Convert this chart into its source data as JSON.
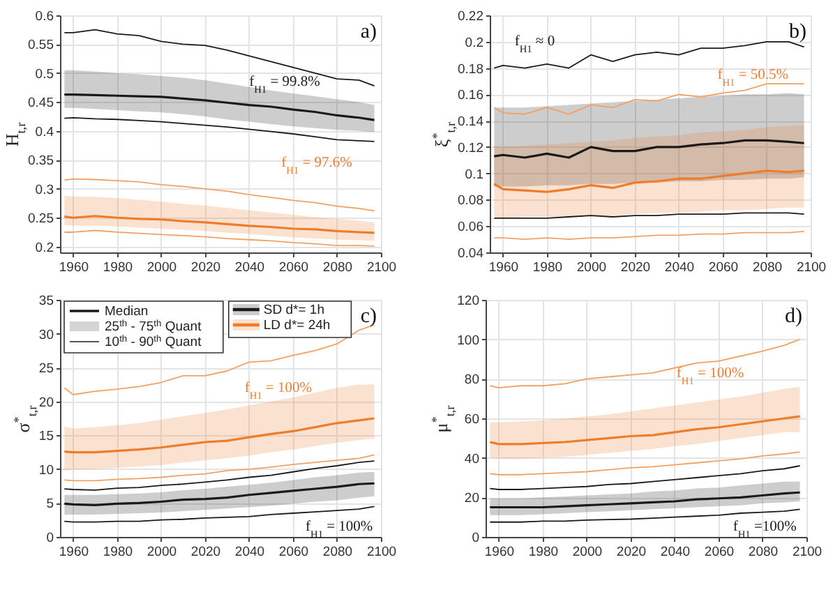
{
  "chart_data": [
    {
      "type": "line",
      "ylabel": "H$_{t,r}$",
      "x": [
        1956,
        1960,
        1970,
        1980,
        1990,
        2000,
        2010,
        2020,
        2030,
        2040,
        2050,
        2060,
        2070,
        2080,
        2090,
        2097
      ],
      "xlim": [
        1954,
        2100
      ],
      "xticks": [
        1960,
        1980,
        2000,
        2020,
        2040,
        2060,
        2080,
        2100
      ],
      "ylim": [
        0.19,
        0.6
      ],
      "yticks": [
        0.2,
        0.25,
        0.3,
        0.35,
        0.4,
        0.45,
        0.5,
        0.55,
        0.6
      ],
      "grid": true,
      "annotations": [
        "a)",
        "f$_{H1}$ = 99.8%",
        "f$_{H1}$ = 97.6%"
      ],
      "series": [
        {
          "color": "#1a1a1a",
          "values": [
            0.463,
            0.463,
            0.462,
            0.461,
            0.46,
            0.459,
            0.456,
            0.453,
            0.449,
            0.445,
            0.442,
            0.437,
            0.433,
            0.427,
            0.423,
            0.419
          ],
          "lower": [
            0.44,
            0.44,
            0.438,
            0.436,
            0.434,
            0.432,
            0.429,
            0.425,
            0.42,
            0.416,
            0.412,
            0.408,
            0.405,
            0.402,
            0.4,
            0.398
          ],
          "upper": [
            0.505,
            0.505,
            0.503,
            0.5,
            0.498,
            0.495,
            0.492,
            0.488,
            0.482,
            0.476,
            0.47,
            0.465,
            0.46,
            0.455,
            0.45,
            0.445
          ]
        },
        {
          "color": "#1a1a1a",
          "values": [
            0.57,
            0.57,
            0.575,
            0.568,
            0.565,
            0.555,
            0.55,
            0.548,
            0.54,
            0.53,
            0.52,
            0.51,
            0.5,
            0.49,
            0.488,
            0.478
          ]
        },
        {
          "color": "#1a1a1a",
          "values": [
            0.422,
            0.423,
            0.421,
            0.42,
            0.418,
            0.416,
            0.413,
            0.41,
            0.407,
            0.403,
            0.399,
            0.395,
            0.39,
            0.385,
            0.383,
            0.382
          ]
        },
        {
          "color": "#ee7d2b",
          "values": [
            0.252,
            0.25,
            0.253,
            0.25,
            0.248,
            0.247,
            0.244,
            0.242,
            0.239,
            0.236,
            0.234,
            0.231,
            0.23,
            0.227,
            0.225,
            0.224
          ],
          "lower": [
            0.237,
            0.236,
            0.236,
            0.235,
            0.233,
            0.231,
            0.229,
            0.227,
            0.224,
            0.222,
            0.219,
            0.216,
            0.214,
            0.212,
            0.211,
            0.21
          ],
          "upper": [
            0.288,
            0.287,
            0.286,
            0.284,
            0.281,
            0.278,
            0.274,
            0.271,
            0.267,
            0.263,
            0.259,
            0.255,
            0.251,
            0.248,
            0.245,
            0.242
          ]
        },
        {
          "color": "#f3a163",
          "values": [
            0.315,
            0.317,
            0.316,
            0.314,
            0.312,
            0.307,
            0.304,
            0.3,
            0.296,
            0.29,
            0.285,
            0.28,
            0.276,
            0.27,
            0.266,
            0.262
          ]
        },
        {
          "color": "#f3a163",
          "values": [
            0.225,
            0.225,
            0.228,
            0.225,
            0.223,
            0.221,
            0.219,
            0.217,
            0.214,
            0.212,
            0.21,
            0.207,
            0.205,
            0.202,
            0.202,
            0.201
          ]
        }
      ]
    },
    {
      "type": "line",
      "ylabel": "ξ$^{*}$$_{t,r}$",
      "x": [
        1956,
        1960,
        1970,
        1980,
        1990,
        2000,
        2010,
        2020,
        2030,
        2040,
        2050,
        2060,
        2070,
        2080,
        2090,
        2097
      ],
      "xlim": [
        1954,
        2100
      ],
      "xticks": [
        1960,
        1980,
        2000,
        2020,
        2040,
        2060,
        2080,
        2100
      ],
      "ylim": [
        0.04,
        0.22
      ],
      "yticks": [
        0.04,
        0.06,
        0.08,
        0.1,
        0.12,
        0.14,
        0.16,
        0.18,
        0.2,
        0.22
      ],
      "grid": true,
      "annotations": [
        "b)",
        "f$_{H1}$ ≈ 0",
        "f$_{H1}$ = 50.5%"
      ],
      "series": [
        {
          "color": "#1a1a1a",
          "values": [
            0.113,
            0.114,
            0.112,
            0.115,
            0.112,
            0.12,
            0.117,
            0.117,
            0.12,
            0.12,
            0.122,
            0.123,
            0.125,
            0.125,
            0.124,
            0.123
          ],
          "lower": [
            0.09,
            0.09,
            0.09,
            0.091,
            0.091,
            0.092,
            0.092,
            0.093,
            0.093,
            0.094,
            0.094,
            0.095,
            0.095,
            0.096,
            0.096,
            0.097
          ],
          "upper": [
            0.15,
            0.15,
            0.15,
            0.151,
            0.152,
            0.153,
            0.154,
            0.155,
            0.156,
            0.157,
            0.158,
            0.159,
            0.16,
            0.16,
            0.161,
            0.16
          ]
        },
        {
          "color": "#1a1a1a",
          "values": [
            0.18,
            0.182,
            0.18,
            0.183,
            0.18,
            0.19,
            0.185,
            0.19,
            0.192,
            0.19,
            0.195,
            0.195,
            0.197,
            0.2,
            0.2,
            0.196
          ]
        },
        {
          "color": "#1a1a1a",
          "values": [
            0.066,
            0.066,
            0.066,
            0.066,
            0.067,
            0.068,
            0.067,
            0.068,
            0.068,
            0.069,
            0.069,
            0.069,
            0.07,
            0.07,
            0.07,
            0.069
          ]
        },
        {
          "color": "#ee7d2b",
          "values": [
            0.092,
            0.088,
            0.087,
            0.086,
            0.088,
            0.091,
            0.089,
            0.093,
            0.094,
            0.096,
            0.096,
            0.098,
            0.1,
            0.102,
            0.101,
            0.102
          ],
          "lower": [
            0.066,
            0.066,
            0.067,
            0.067,
            0.067,
            0.068,
            0.068,
            0.069,
            0.07,
            0.07,
            0.071,
            0.072,
            0.072,
            0.073,
            0.074,
            0.074
          ],
          "upper": [
            0.121,
            0.12,
            0.121,
            0.122,
            0.123,
            0.124,
            0.125,
            0.127,
            0.128,
            0.129,
            0.131,
            0.132,
            0.133,
            0.135,
            0.136,
            0.137
          ]
        },
        {
          "color": "#f3a163",
          "values": [
            0.15,
            0.146,
            0.145,
            0.15,
            0.145,
            0.152,
            0.15,
            0.156,
            0.155,
            0.16,
            0.158,
            0.161,
            0.163,
            0.168,
            0.168,
            0.168
          ]
        },
        {
          "color": "#f3a163",
          "values": [
            0.051,
            0.051,
            0.05,
            0.051,
            0.05,
            0.051,
            0.051,
            0.052,
            0.053,
            0.053,
            0.054,
            0.054,
            0.055,
            0.055,
            0.055,
            0.056
          ]
        }
      ]
    },
    {
      "type": "line",
      "ylabel": "σ$^{*}$$_{t,r}$",
      "x": [
        1956,
        1960,
        1970,
        1980,
        1990,
        2000,
        2010,
        2020,
        2030,
        2040,
        2050,
        2060,
        2070,
        2080,
        2090,
        2097
      ],
      "xlim": [
        1954,
        2100
      ],
      "xticks": [
        1960,
        1980,
        2000,
        2020,
        2040,
        2060,
        2080,
        2100
      ],
      "ylim": [
        0,
        35
      ],
      "yticks": [
        0,
        5,
        10,
        15,
        20,
        25,
        30,
        35
      ],
      "grid": true,
      "legend": "top",
      "annotations": [
        "c)",
        "Median",
        "25$^{th}$ - 75$^{th}$ Quant",
        "10$^{th}$ - 90$^{th}$ Quant",
        "f$_{H1}$ = 100%",
        "f$_{H1}$ = 100%"
      ],
      "series": [
        {
          "name": "SD   d*= 1h",
          "color": "#1a1a1a",
          "values": [
            4.9,
            4.8,
            4.7,
            4.9,
            5.0,
            5.2,
            5.5,
            5.6,
            5.8,
            6.2,
            6.5,
            6.8,
            7.1,
            7.4,
            7.8,
            7.9
          ],
          "lower": [
            3.3,
            3.3,
            3.3,
            3.4,
            3.5,
            3.6,
            3.8,
            4.0,
            4.2,
            4.4,
            4.6,
            4.9,
            5.2,
            5.4,
            5.8,
            6.0
          ],
          "upper": [
            6.2,
            6.2,
            6.2,
            6.3,
            6.4,
            6.6,
            6.9,
            7.1,
            7.4,
            7.7,
            8.0,
            8.4,
            8.8,
            9.1,
            9.5,
            9.6
          ]
        },
        {
          "color": "#1a1a1a",
          "values": [
            2.3,
            2.2,
            2.2,
            2.3,
            2.3,
            2.5,
            2.6,
            2.8,
            2.9,
            3.0,
            3.3,
            3.5,
            3.7,
            3.9,
            4.1,
            4.5
          ]
        },
        {
          "color": "#1a1a1a",
          "values": [
            7.1,
            7.0,
            6.9,
            7.2,
            7.3,
            7.6,
            7.8,
            8.1,
            8.4,
            8.8,
            9.1,
            9.6,
            10.1,
            10.5,
            11.0,
            11.2
          ]
        },
        {
          "name": "LD   d*= 24h",
          "color": "#ee7d2b",
          "values": [
            12.6,
            12.5,
            12.5,
            12.7,
            12.9,
            13.2,
            13.6,
            14.0,
            14.2,
            14.7,
            15.2,
            15.6,
            16.2,
            16.8,
            17.2,
            17.5
          ],
          "lower": [
            9.8,
            9.9,
            10.0,
            10.2,
            10.4,
            10.6,
            11.0,
            11.3,
            11.6,
            12.0,
            12.5,
            12.9,
            13.4,
            13.9,
            14.3,
            14.5
          ],
          "upper": [
            16.3,
            16.0,
            16.2,
            16.5,
            16.8,
            17.3,
            17.8,
            18.3,
            18.8,
            19.4,
            20.0,
            20.6,
            21.3,
            22.0,
            22.5,
            22.5
          ]
        },
        {
          "color": "#f3a163",
          "values": [
            8.4,
            8.3,
            8.3,
            8.5,
            8.6,
            8.8,
            9.1,
            9.3,
            9.8,
            10.0,
            10.3,
            10.7,
            11.0,
            11.3,
            11.6,
            12.1
          ]
        },
        {
          "color": "#f3a163",
          "values": [
            22.0,
            21.0,
            21.5,
            21.8,
            22.2,
            22.8,
            23.8,
            23.8,
            24.5,
            25.8,
            26.0,
            26.8,
            27.5,
            28.5,
            30.5,
            31.3
          ]
        }
      ]
    },
    {
      "type": "line",
      "ylabel": "μ$^{*}$$_{t,r}$",
      "x": [
        1956,
        1960,
        1970,
        1980,
        1990,
        2000,
        2010,
        2020,
        2030,
        2040,
        2050,
        2060,
        2070,
        2080,
        2090,
        2097
      ],
      "xlim": [
        1954,
        2100
      ],
      "xticks": [
        1960,
        1980,
        2000,
        2020,
        2040,
        2060,
        2080,
        2100
      ],
      "ylim": [
        0,
        120
      ],
      "yticks": [
        0,
        20,
        40,
        60,
        80,
        100,
        120
      ],
      "grid": true,
      "annotations": [
        "d)",
        "f$_{H1}$ =  100%",
        "f$_{H1}$ =100%"
      ],
      "series": [
        {
          "color": "#1a1a1a",
          "values": [
            15,
            15,
            15,
            15,
            15.5,
            16,
            16.5,
            17,
            17.5,
            18,
            19,
            19.5,
            20,
            21,
            22,
            22.5
          ],
          "lower": [
            11,
            11,
            11,
            11.5,
            12,
            12.5,
            13,
            13.5,
            14,
            14.5,
            15,
            15.5,
            16,
            17,
            17.5,
            18
          ],
          "upper": [
            19.5,
            19.5,
            19.5,
            20,
            20.5,
            21,
            21.5,
            22,
            23,
            23.5,
            24.5,
            25,
            26,
            27,
            28,
            28
          ]
        },
        {
          "color": "#1a1a1a",
          "values": [
            7.5,
            7.5,
            7.5,
            8,
            8,
            8.5,
            8.8,
            9,
            9.5,
            10,
            10.5,
            11,
            12,
            12.5,
            13,
            14
          ]
        },
        {
          "color": "#1a1a1a",
          "values": [
            24.5,
            24,
            24,
            24.5,
            25,
            25.5,
            26.5,
            27,
            28,
            29,
            30,
            31,
            32,
            33.5,
            34.5,
            36
          ]
        },
        {
          "color": "#ee7d2b",
          "values": [
            48,
            47,
            47,
            47.5,
            48,
            49,
            50,
            51,
            51.5,
            53,
            54.5,
            55.5,
            57,
            58.5,
            60,
            61
          ],
          "lower": [
            40,
            39.5,
            39.5,
            40,
            40.5,
            41.5,
            42.5,
            43.5,
            44.5,
            46,
            47,
            48.5,
            50,
            51.5,
            53,
            53
          ],
          "upper": [
            58,
            58,
            58.5,
            59,
            60,
            61,
            62,
            63.5,
            65,
            66.5,
            68,
            69.5,
            71,
            73,
            75,
            76
          ]
        },
        {
          "color": "#f3a163",
          "values": [
            32,
            31.5,
            31.5,
            32,
            32.5,
            33,
            34,
            35,
            35.5,
            36.5,
            37.5,
            38.5,
            39.5,
            41,
            42,
            43
          ]
        },
        {
          "color": "#f3a163",
          "values": [
            76.5,
            75.5,
            76.5,
            76.5,
            77.5,
            80,
            81,
            82,
            83,
            85.5,
            88,
            89,
            91.5,
            94,
            97,
            100
          ]
        }
      ]
    }
  ]
}
